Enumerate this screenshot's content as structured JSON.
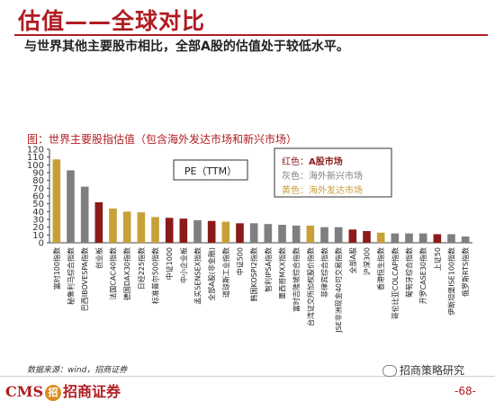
{
  "header": {
    "title": "估值——全球对比",
    "subtitle": "与世界其他主要股市相比，全部A股的估值处于较低水平。"
  },
  "chart_caption": "图：世界主要股指估值（包含海外发达市场和新兴市场）",
  "chart_data": {
    "type": "bar",
    "title": "",
    "xlabel": "",
    "ylabel": "",
    "ylim": [
      0,
      120
    ],
    "yticks": [
      0,
      10,
      20,
      30,
      40,
      50,
      60,
      70,
      80,
      90,
      100,
      110,
      120
    ],
    "grid": false,
    "metric_label": "PE（TTM）",
    "legend_position": "top-right",
    "legend": [
      {
        "label": "红色：",
        "value": "A股市场",
        "group": "a_share"
      },
      {
        "label": "灰色：",
        "value": "海外新兴市场",
        "group": "emerging"
      },
      {
        "label": "黄色：",
        "value": "海外发达市场",
        "group": "developed"
      }
    ],
    "colors": {
      "a_share": "#8b1a1a",
      "emerging": "#7f7f7f",
      "developed": "#c8a03a"
    },
    "categories": [
      "富时100指数",
      "秘鲁利马综合指数",
      "巴西IBOVESPA指数",
      "创业板",
      "法国CAC40指数",
      "德国DAX30指数",
      "日经225指数",
      "标准普尔500指数",
      "中证1000",
      "中小企业板",
      "孟买SENSEX指数",
      "全部A股(非金融)",
      "道琼斯工业指数",
      "中证500",
      "韩国KOSPI2指数",
      "智利IPSA指数",
      "墨西哥MXX指数",
      "富时吉隆坡综合指数",
      "台湾证交所加权股价指数",
      "菲律宾综合指数",
      "JSE非洲现金40可交易指数",
      "全部A股",
      "沪深300",
      "香港恒生指数",
      "哥伦比亚COLCAP指数",
      "葡萄牙综合指数",
      "开罗CASE30指数",
      "上证50",
      "伊斯坦堡ISE100指数",
      "俄罗斯RTS指数"
    ],
    "values": [
      107,
      93,
      72,
      52,
      44,
      40,
      39,
      33,
      32,
      31,
      29,
      28,
      27,
      25,
      25,
      24,
      23,
      22,
      22,
      20,
      20,
      17,
      15,
      13,
      12,
      12,
      12,
      11,
      11,
      8
    ],
    "groups": [
      "developed",
      "emerging",
      "emerging",
      "a_share",
      "developed",
      "developed",
      "developed",
      "developed",
      "a_share",
      "a_share",
      "emerging",
      "a_share",
      "developed",
      "a_share",
      "emerging",
      "emerging",
      "emerging",
      "emerging",
      "developed",
      "emerging",
      "emerging",
      "a_share",
      "a_share",
      "developed",
      "emerging",
      "emerging",
      "emerging",
      "a_share",
      "emerging",
      "emerging"
    ]
  },
  "footer": {
    "source": "数据来源：wind，招商证券",
    "logo_text": "CMS",
    "logo_badge": "招",
    "logo_name": "招商证券",
    "wechat_text": "招商策略研究",
    "page_number": "-68-"
  }
}
